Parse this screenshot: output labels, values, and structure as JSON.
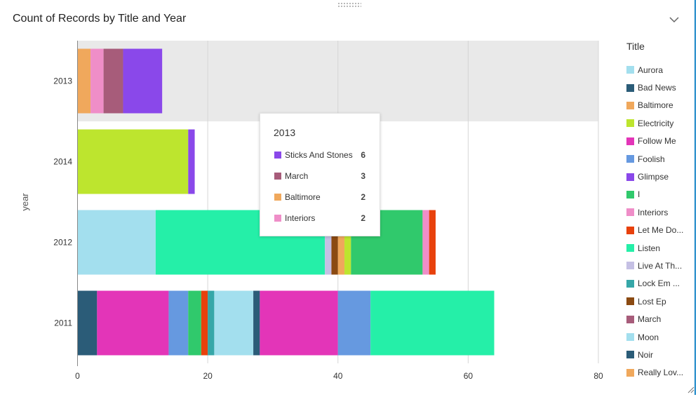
{
  "panel": {
    "title": "Count of Records by Title and Year",
    "collapse_icon": "chevron-down-icon",
    "accent_color": "#1a86c8"
  },
  "chart_data": {
    "type": "bar",
    "orientation": "horizontal",
    "stacked": true,
    "title": "Count of Records by Title and Year",
    "ylabel": "year",
    "xlabel": "",
    "categories": [
      "2013",
      "2014",
      "2012",
      "2011"
    ],
    "xlim": [
      0,
      80
    ],
    "x_ticks": [
      0,
      20,
      40,
      60,
      80
    ],
    "grid": true,
    "highlighted_category": "2013",
    "legend_position": "right",
    "stacks": [
      {
        "category": "2013",
        "segments": [
          {
            "series": "Baltimore",
            "value": 2
          },
          {
            "series": "Interiors",
            "value": 2
          },
          {
            "series": "March",
            "value": 3
          },
          {
            "series": "Sticks And Stones",
            "value": 6
          }
        ]
      },
      {
        "category": "2014",
        "segments": [
          {
            "series": "Electricity",
            "value": 17
          },
          {
            "series": "Glimpse",
            "value": 1
          }
        ]
      },
      {
        "category": "2012",
        "segments": [
          {
            "series": "Moon",
            "value": 12
          },
          {
            "series": "Listen",
            "value": 26
          },
          {
            "series": "Live At The...",
            "value": 1
          },
          {
            "series": "Lost Ep",
            "value": 1
          },
          {
            "series": "Baltimore",
            "value": 1
          },
          {
            "series": "Electricity",
            "value": 1
          },
          {
            "series": "I",
            "value": 11
          },
          {
            "series": "Interiors",
            "value": 1
          },
          {
            "series": "Let Me Do...",
            "value": 1
          }
        ]
      },
      {
        "category": "2011",
        "segments": [
          {
            "series": "Noir",
            "value": 3
          },
          {
            "series": "Follow Me",
            "value": 11
          },
          {
            "series": "Foolish",
            "value": 3
          },
          {
            "series": "I",
            "value": 2
          },
          {
            "series": "Let Me Do...",
            "value": 1
          },
          {
            "series": "Lock Em ...",
            "value": 1
          },
          {
            "series": "Moon",
            "value": 6
          },
          {
            "series": "Noir",
            "value": 1
          },
          {
            "series": "Follow Me",
            "value": 12
          },
          {
            "series": "Foolish",
            "value": 5
          },
          {
            "series": "Listen",
            "value": 19
          }
        ]
      }
    ]
  },
  "series_colors": {
    "Aurora": "#a3dfee",
    "Bad News": "#2b5c78",
    "Baltimore": "#f0a85c",
    "Electricity": "#bde52e",
    "Follow Me": "#e335b8",
    "Foolish": "#6699e0",
    "Glimpse": "#8a48ea",
    "I": "#30c96c",
    "Interiors": "#ef8ec8",
    "Let Me Do...": "#e8410c",
    "Listen": "#25efa8",
    "Live At The...": "#c5c0e4",
    "Lock Em ...": "#36a7a8",
    "Lost Ep": "#8b4a12",
    "March": "#a75c7a",
    "Moon": "#a3dfee",
    "Noir": "#2b5c78",
    "Really Lov...": "#f0a85c",
    "Sticks And Stones": "#8a48ea"
  },
  "legend": {
    "title": "Title",
    "items": [
      {
        "label": "Aurora",
        "color": "#a3dfee"
      },
      {
        "label": "Bad News",
        "color": "#2b5c78"
      },
      {
        "label": "Baltimore",
        "color": "#f0a85c"
      },
      {
        "label": "Electricity",
        "color": "#bde52e"
      },
      {
        "label": "Follow Me",
        "color": "#e335b8"
      },
      {
        "label": "Foolish",
        "color": "#6699e0"
      },
      {
        "label": "Glimpse",
        "color": "#8a48ea"
      },
      {
        "label": "I",
        "color": "#30c96c"
      },
      {
        "label": "Interiors",
        "color": "#ef8ec8"
      },
      {
        "label": "Let Me Do...",
        "color": "#e8410c"
      },
      {
        "label": "Listen",
        "color": "#25efa8"
      },
      {
        "label": "Live At Th...",
        "color": "#c5c0e4"
      },
      {
        "label": "Lock Em ...",
        "color": "#36a7a8"
      },
      {
        "label": "Lost Ep",
        "color": "#8b4a12"
      },
      {
        "label": "March",
        "color": "#a75c7a"
      },
      {
        "label": "Moon",
        "color": "#a3dfee"
      },
      {
        "label": "Noir",
        "color": "#2b5c78"
      },
      {
        "label": "Really Lov...",
        "color": "#f0a85c"
      }
    ]
  },
  "tooltip": {
    "title": "2013",
    "rows": [
      {
        "label": "Sticks And Stones",
        "value": "6",
        "color": "#8a48ea"
      },
      {
        "label": "March",
        "value": "3",
        "color": "#a75c7a"
      },
      {
        "label": "Baltimore",
        "value": "2",
        "color": "#f0a85c"
      },
      {
        "label": "Interiors",
        "value": "2",
        "color": "#ef8ec8"
      }
    ]
  }
}
